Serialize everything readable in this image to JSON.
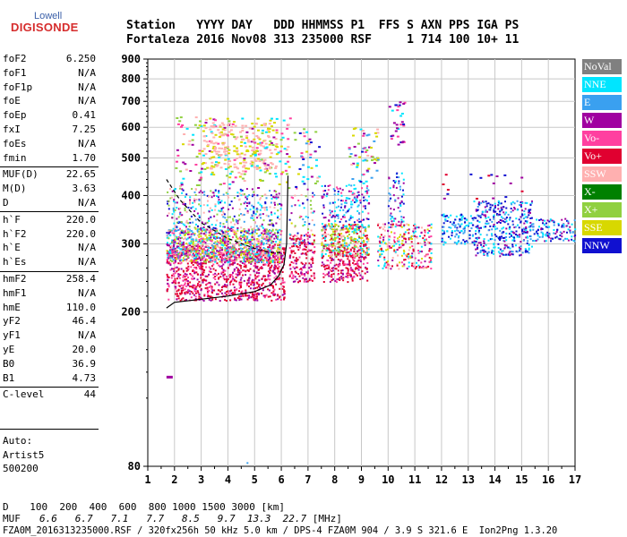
{
  "logo": {
    "top": "Lowell",
    "bottom": "DIGISONDE"
  },
  "header": {
    "row1": "Station   YYYY DAY   DDD HHMMSS P1  FFS S AXN PPS IGA PS",
    "row2": "Fortaleza 2016 Nov08 313 235000 RSF     1 714 100 10+ 11"
  },
  "params": {
    "group1": [
      {
        "name": "foF2",
        "value": "6.250"
      },
      {
        "name": "foF1",
        "value": "N/A"
      },
      {
        "name": "foF1p",
        "value": "N/A"
      },
      {
        "name": "foE",
        "value": "N/A"
      },
      {
        "name": "foEp",
        "value": "0.41"
      },
      {
        "name": "fxI",
        "value": "7.25"
      },
      {
        "name": "foEs",
        "value": "N/A"
      },
      {
        "name": "fmin",
        "value": "1.70"
      }
    ],
    "group2": [
      {
        "name": "MUF(D)",
        "value": "22.65"
      },
      {
        "name": "M(D)",
        "value": "3.63"
      },
      {
        "name": "D",
        "value": "N/A"
      }
    ],
    "group3": [
      {
        "name": "h`F",
        "value": "220.0"
      },
      {
        "name": "h`F2",
        "value": "220.0"
      },
      {
        "name": "h`E",
        "value": "N/A"
      },
      {
        "name": "h`Es",
        "value": "N/A"
      }
    ],
    "group4": [
      {
        "name": "hmF2",
        "value": "258.4"
      },
      {
        "name": "hmF1",
        "value": "N/A"
      },
      {
        "name": "hmE",
        "value": "110.0"
      },
      {
        "name": "yF2",
        "value": "46.4"
      },
      {
        "name": "yF1",
        "value": "N/A"
      },
      {
        "name": "yE",
        "value": "20.0"
      },
      {
        "name": "B0",
        "value": "36.9"
      },
      {
        "name": "B1",
        "value": "4.73"
      }
    ],
    "group5": [
      {
        "name": "C-level",
        "value": "44"
      }
    ]
  },
  "auto": {
    "line1": "Auto:",
    "line2": "Artist5",
    "line3": "500200"
  },
  "legend": [
    {
      "label": "NoVal",
      "color": "#808080"
    },
    {
      "label": "NNE",
      "color": "#00e5ff"
    },
    {
      "label": "E",
      "color": "#3aa0f0"
    },
    {
      "label": "W",
      "color": "#a000a0"
    },
    {
      "label": "Vo-",
      "color": "#ff40a0"
    },
    {
      "label": "Vo+",
      "color": "#e00030"
    },
    {
      "label": "SSW",
      "color": "#ffb0b0"
    },
    {
      "label": "X-",
      "color": "#008000"
    },
    {
      "label": "X+",
      "color": "#90d040"
    },
    {
      "label": "SSE",
      "color": "#d8d800"
    },
    {
      "label": "NNW",
      "color": "#1010d0"
    }
  ],
  "footer": {
    "d_label": "D",
    "d_values": "  100  200  400  600  800 1000 1500 3000 [km]",
    "muf_label": "MUF",
    "muf_values": [
      "6.6",
      "6.7",
      "7.1",
      "7.7",
      "8.5",
      "9.7",
      "13.3",
      "22.7"
    ],
    "muf_unit": "[MHz]",
    "info": "FZA0M_2016313235000.RSF / 320fx256h 50 kHz 5.0 km / DPS-4 FZA0M 904 / 3.9 S 321.6 E  Ion2Png 1.3.20"
  },
  "chart_data": {
    "type": "scatter",
    "xlim": [
      1,
      17
    ],
    "ylim": [
      80,
      900
    ],
    "x_ticks": [
      1,
      2,
      3,
      4,
      5,
      6,
      7,
      8,
      9,
      10,
      11,
      12,
      13,
      14,
      15,
      16,
      17
    ],
    "y_ticks": [
      80,
      200,
      300,
      400,
      500,
      600,
      700,
      800,
      900
    ],
    "y_scale": "log",
    "grid": true,
    "legend_placement": "right",
    "trace_clusters": [
      {
        "name": "NNE",
        "x_range": [
          1.7,
          7.2
        ],
        "y_range": [
          280,
          330
        ]
      },
      {
        "name": "W",
        "x_range": [
          1.7,
          6.2
        ],
        "y_range": [
          220,
          330
        ]
      },
      {
        "name": "Vo+",
        "x_range": [
          1.7,
          6.2
        ],
        "y_range": [
          215,
          300
        ]
      },
      {
        "name": "SSE",
        "x_range": [
          1.7,
          6.0
        ],
        "y_range": [
          270,
          320
        ]
      },
      {
        "name": "SSW",
        "x_range": [
          3.0,
          6.0
        ],
        "y_range": [
          480,
          620
        ]
      },
      {
        "name": "NNW",
        "x_range": [
          12.0,
          17.0
        ],
        "y_range": [
          290,
          380
        ]
      },
      {
        "name": "NNE",
        "x_range": [
          12.0,
          17.0
        ],
        "y_range": [
          310,
          360
        ]
      }
    ],
    "profile_curve": [
      {
        "x": 1.7,
        "y": 205
      },
      {
        "x": 2.0,
        "y": 212
      },
      {
        "x": 3.0,
        "y": 216
      },
      {
        "x": 4.0,
        "y": 220
      },
      {
        "x": 5.0,
        "y": 226
      },
      {
        "x": 5.6,
        "y": 235
      },
      {
        "x": 5.9,
        "y": 248
      },
      {
        "x": 6.1,
        "y": 265
      },
      {
        "x": 6.2,
        "y": 300
      },
      {
        "x": 6.25,
        "y": 450
      }
    ],
    "oblique_curve": [
      {
        "x": 1.7,
        "y": 440
      },
      {
        "x": 2.2,
        "y": 390
      },
      {
        "x": 3.0,
        "y": 340
      },
      {
        "x": 4.0,
        "y": 310
      },
      {
        "x": 5.0,
        "y": 292
      },
      {
        "x": 5.6,
        "y": 285
      },
      {
        "x": 6.0,
        "y": 285
      }
    ]
  }
}
